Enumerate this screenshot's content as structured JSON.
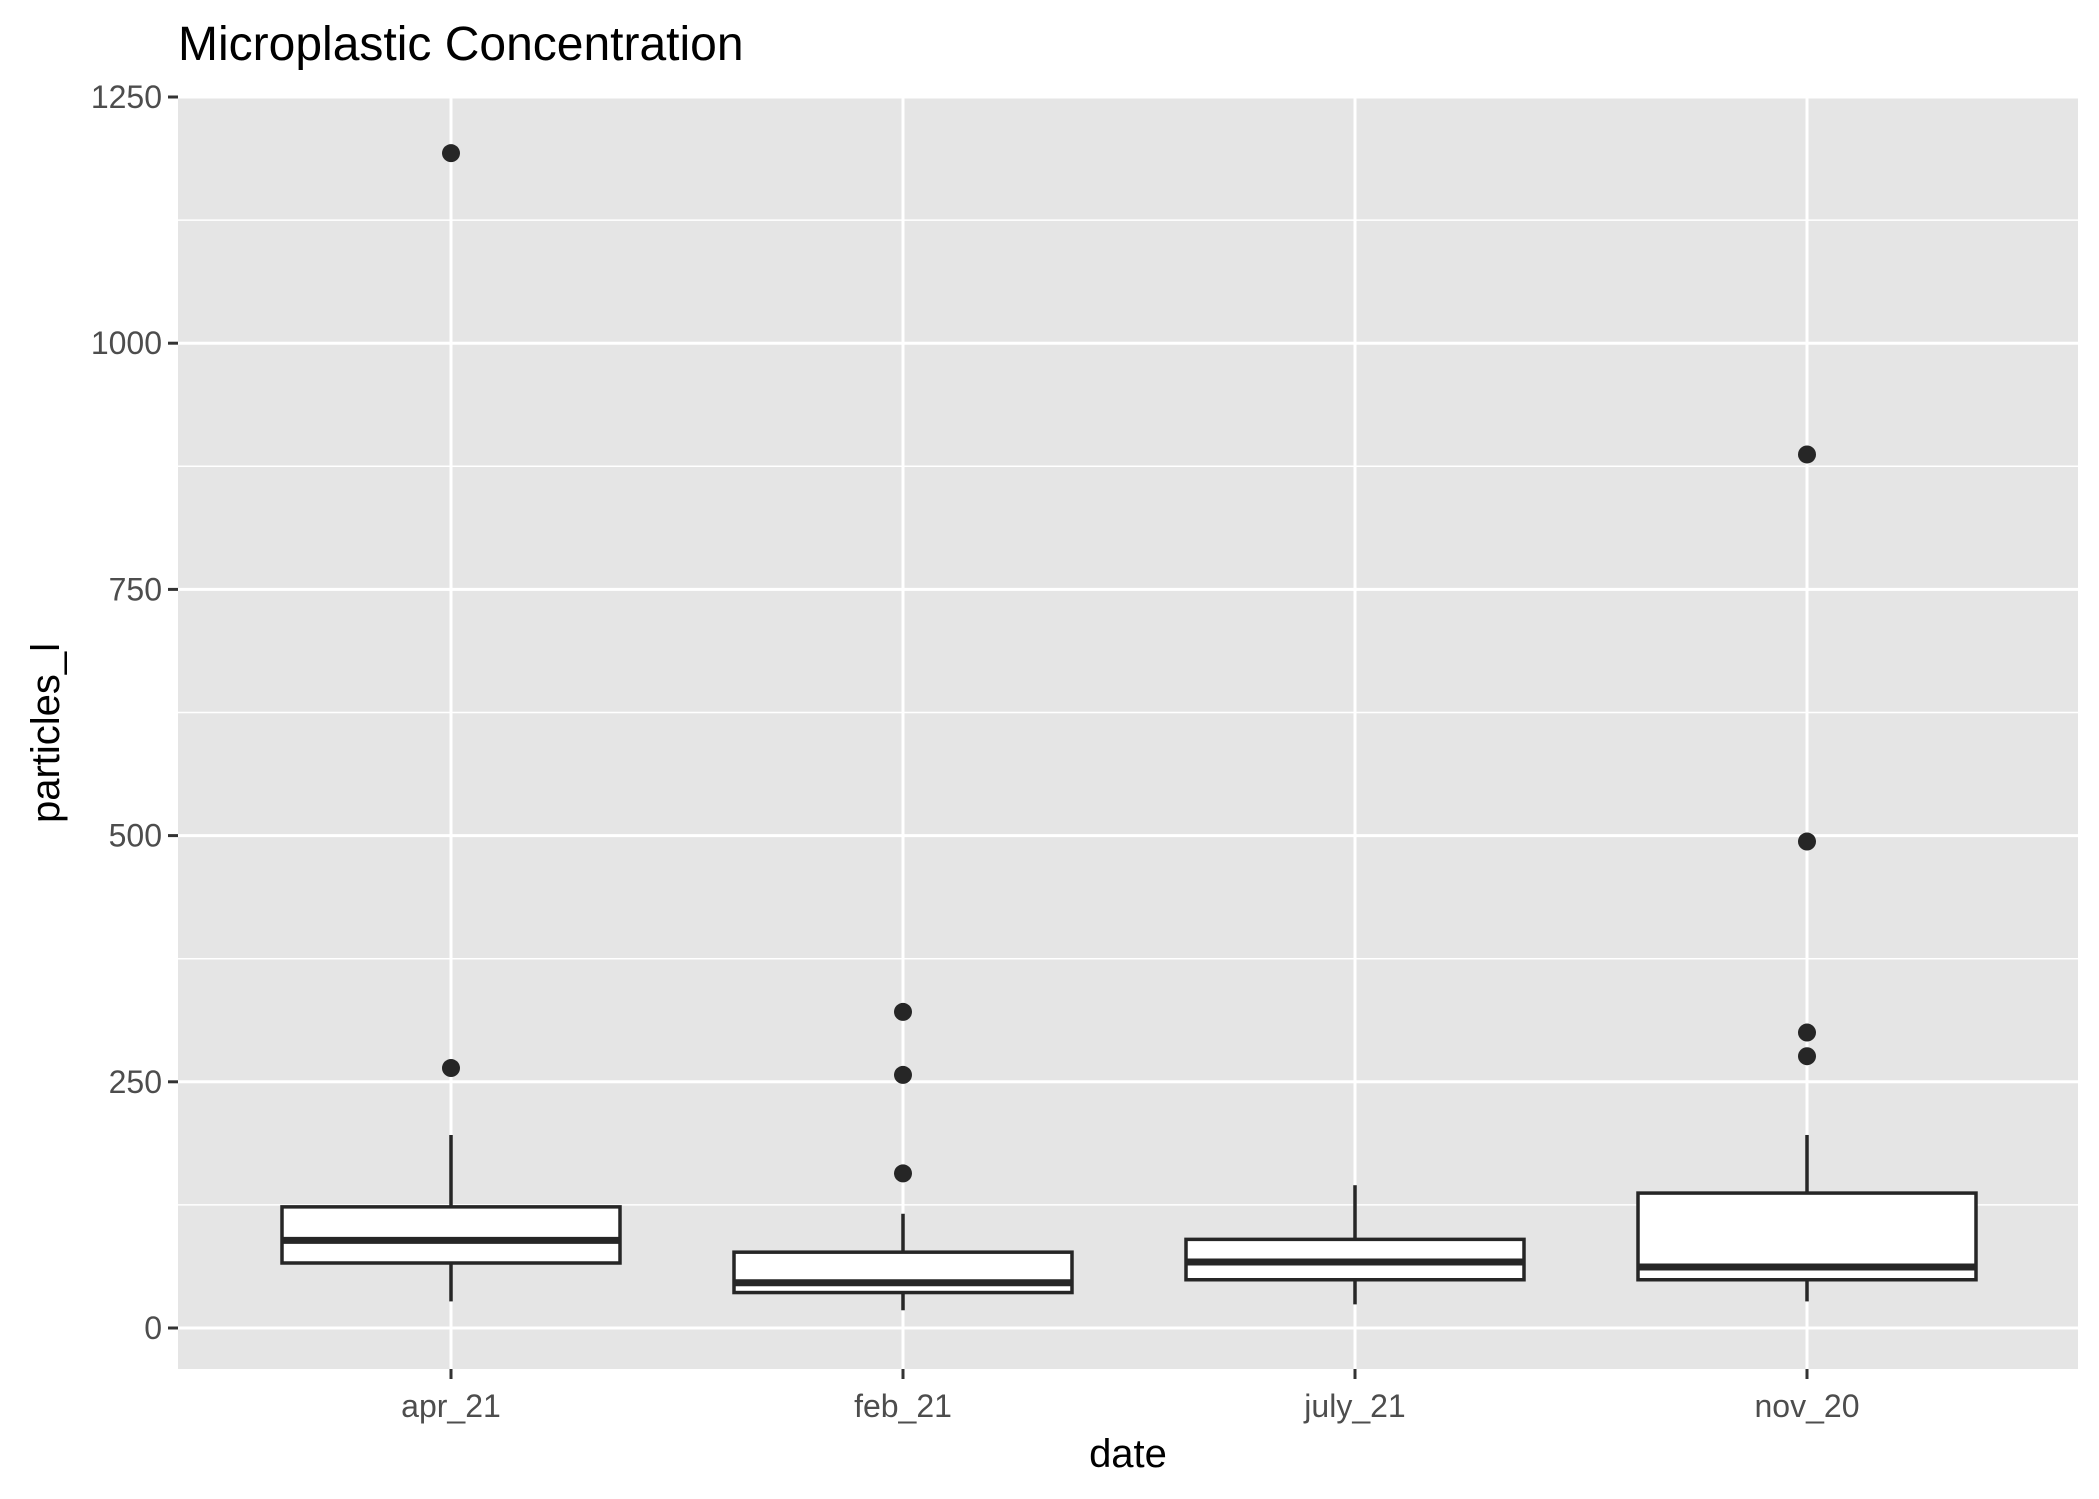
{
  "chart_data": {
    "type": "boxplot",
    "title": "Microplastic Concentration",
    "xlabel": "date",
    "ylabel": "particles_l",
    "categories": [
      "apr_21",
      "feb_21",
      "july_21",
      "nov_20"
    ],
    "ylim": [
      -43,
      1250
    ],
    "y_ticks": [
      0,
      250,
      500,
      750,
      1000,
      1250
    ],
    "grid": true,
    "legend": "none",
    "colors": {
      "panel_background": "#e5e5e5",
      "grid": "#ffffff",
      "box_fill": "#ffffff",
      "box_outline": "#262626",
      "outlier": "#262626",
      "tick_label": "#4d4d4d"
    },
    "boxes": [
      {
        "category": "apr_21",
        "whisker_low": 27,
        "q1": 66,
        "median": 89,
        "q3": 123,
        "whisker_high": 196,
        "outliers": [
          264,
          1193
        ]
      },
      {
        "category": "feb_21",
        "whisker_low": 18,
        "q1": 36,
        "median": 46,
        "q3": 77,
        "whisker_high": 116,
        "outliers": [
          157,
          257,
          321
        ]
      },
      {
        "category": "july_21",
        "whisker_low": 24,
        "q1": 49,
        "median": 67,
        "q3": 90,
        "whisker_high": 145,
        "outliers": []
      },
      {
        "category": "nov_20",
        "whisker_low": 27,
        "q1": 49,
        "median": 62,
        "q3": 137,
        "whisker_high": 196,
        "outliers": [
          276,
          300,
          494,
          887
        ]
      }
    ]
  }
}
